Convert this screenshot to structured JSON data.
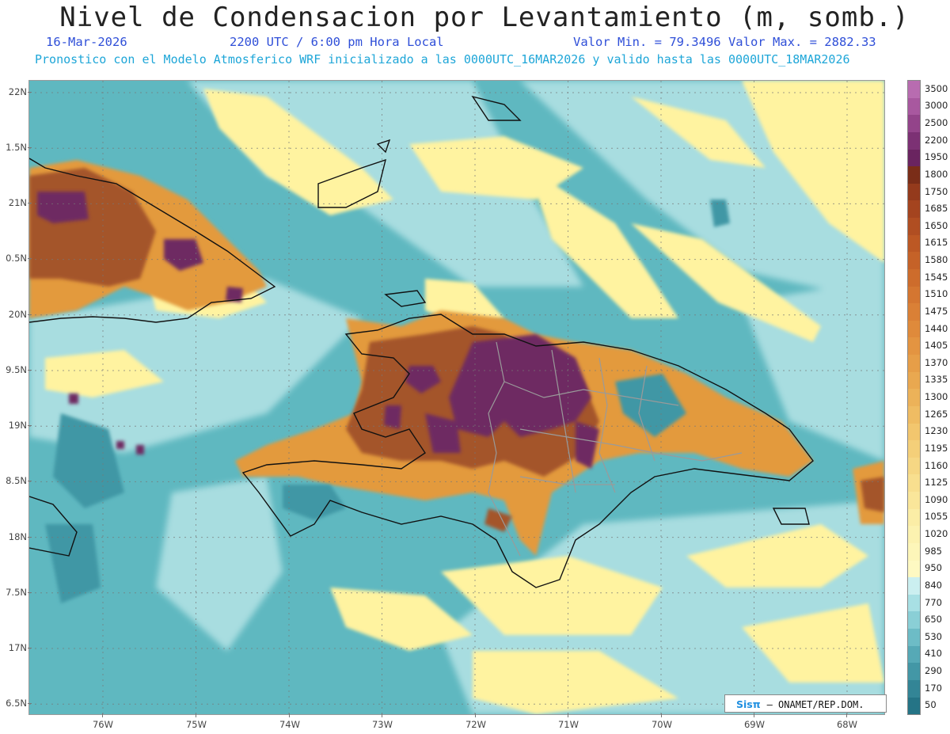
{
  "header": {
    "title": "Nivel de Condensacion por Levantamiento (m, somb.)",
    "date": "16-Mar-2026",
    "time": "2200 UTC / 6:00 pm Hora Local",
    "min_max": "Valor Min. = 79.3496  Valor Max. = 2882.33",
    "model_info": "Pronostico con el Modelo Atmosferico WRF inicializado a las 0000UTC_16MAR2026 y valido hasta las  0000UTC_18MAR2026"
  },
  "map": {
    "lat_labels": [
      "22N",
      "1.5N",
      "21N",
      "0.5N",
      "20N",
      "9.5N",
      "19N",
      "8.5N",
      "18N",
      "7.5N",
      "17N",
      "6.5N"
    ],
    "lon_labels": [
      "76W",
      "75W",
      "74W",
      "73W",
      "72W",
      "71W",
      "70W",
      "69W",
      "68W"
    ],
    "colors": {
      "ocean": "#5fb8c0",
      "light_teal": "#a8dde0",
      "yellow": "#fff3a0",
      "orange": "#e39a3c",
      "brown": "#a4552a",
      "purple": "#6e2a62",
      "coast": "#111111",
      "borders": "#9a9a9a"
    }
  },
  "colorbar": {
    "labels": [
      "3500",
      "3000",
      "2500",
      "2200",
      "1950",
      "1800",
      "1750",
      "1685",
      "1650",
      "1615",
      "1580",
      "1545",
      "1510",
      "1475",
      "1440",
      "1405",
      "1370",
      "1335",
      "1300",
      "1265",
      "1230",
      "1195",
      "1160",
      "1125",
      "1090",
      "1055",
      "1020",
      "985",
      "950",
      "840",
      "770",
      "650",
      "530",
      "410",
      "290",
      "170",
      "50"
    ],
    "colors": [
      "#b86cb0",
      "#a8589f",
      "#93448a",
      "#7c3174",
      "#6a2460",
      "#7a2d18",
      "#943a1c",
      "#a4441f",
      "#b04e22",
      "#bc5824",
      "#c56228",
      "#cd6c2c",
      "#d47631",
      "#da8036",
      "#df8a3b",
      "#e39441",
      "#e69e48",
      "#e9a850",
      "#ecb259",
      "#efbc63",
      "#f2c66e",
      "#f4cf79",
      "#f6d784",
      "#f8df8f",
      "#fae69a",
      "#fbeda6",
      "#fcf2b0",
      "#fdf6b9",
      "#fef9c2",
      "#cbeff0",
      "#a8e0e4",
      "#8acfd6",
      "#6dbcc6",
      "#56a9b6",
      "#4397a6",
      "#338596",
      "#257486"
    ]
  },
  "credit": {
    "logo": "Sisπ",
    "org": "– ONAMET/REP.DOM."
  }
}
